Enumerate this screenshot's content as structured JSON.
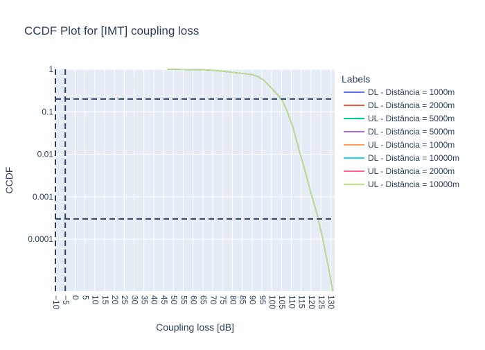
{
  "chart_data": {
    "type": "line",
    "title": "CCDF Plot for [IMT] coupling loss",
    "xlabel": "Coupling loss [dB]",
    "ylabel": "CCDF",
    "x_scale": "linear",
    "y_scale": "log",
    "xlim": [
      -10,
      132
    ],
    "ylim": [
      6e-06,
      1
    ],
    "grid": true,
    "x_ticks": [
      -10,
      -5,
      0,
      5,
      10,
      15,
      20,
      25,
      30,
      35,
      40,
      45,
      50,
      55,
      60,
      65,
      70,
      75,
      80,
      85,
      90,
      95,
      100,
      105,
      110,
      115,
      120,
      125,
      130
    ],
    "x_tick_labels": [
      "−10",
      "−5",
      "0",
      "5",
      "10",
      "15",
      "20",
      "25",
      "30",
      "35",
      "40",
      "45",
      "50",
      "55",
      "60",
      "65",
      "70",
      "75",
      "80",
      "85",
      "90",
      "95",
      "100",
      "105",
      "110",
      "115",
      "120",
      "125",
      "130"
    ],
    "y_ticks": [
      1,
      0.1,
      0.01,
      0.001,
      0.0001
    ],
    "y_tick_labels": [
      "1",
      "0.1",
      "0.01",
      "0.001",
      "0.0001"
    ],
    "reference_lines": {
      "horizontal": [
        0.2,
        0.0003
      ],
      "vertical": [
        -10,
        -5
      ]
    },
    "legend": {
      "title": "Labels",
      "position": "right"
    },
    "series": [
      {
        "name": "DL - Distância = 1000m",
        "color": "#636efa"
      },
      {
        "name": "DL - Distância = 2000m",
        "color": "#ef553b"
      },
      {
        "name": "UL - Distância = 5000m",
        "color": "#00cc96"
      },
      {
        "name": "DL - Distância = 5000m",
        "color": "#ab63fa"
      },
      {
        "name": "UL - Distância = 1000m",
        "color": "#ffa15a"
      },
      {
        "name": "DL - Distância = 10000m",
        "color": "#19d3f3"
      },
      {
        "name": "UL - Distância = 2000m",
        "color": "#ff6692"
      },
      {
        "name": "UL - Distância = 10000m",
        "color": "#b6e880"
      }
    ],
    "curve": {
      "x": [
        47,
        55,
        65,
        70,
        75,
        80,
        85,
        90,
        93,
        96,
        99,
        102,
        105,
        108,
        111,
        114,
        117,
        120,
        123,
        126,
        129,
        131
      ],
      "y": [
        1,
        0.99,
        0.98,
        0.95,
        0.9,
        0.85,
        0.8,
        0.75,
        0.68,
        0.55,
        0.4,
        0.28,
        0.2,
        0.1,
        0.04,
        0.012,
        0.004,
        0.0012,
        0.0004,
        0.0001,
        2e-05,
        6e-06
      ]
    }
  }
}
